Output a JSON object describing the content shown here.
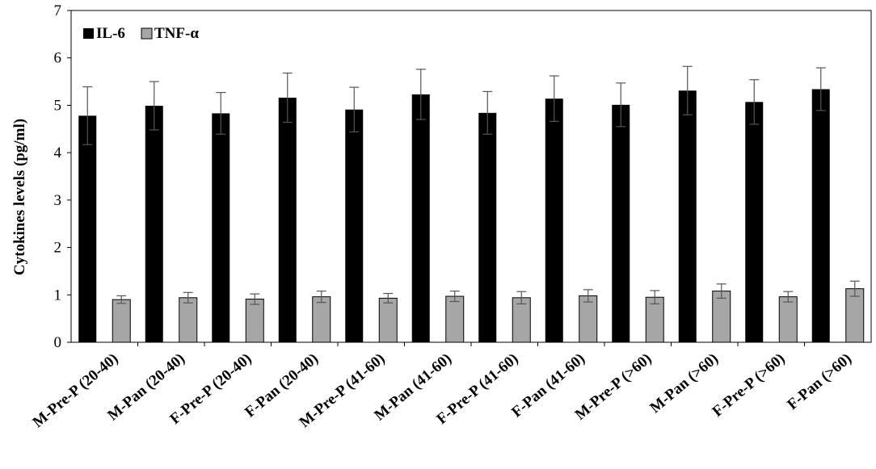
{
  "chart_data": {
    "type": "bar",
    "ylabel": "Cytokines levels (pg/ml)",
    "xlabel": "",
    "title": "",
    "ylim": [
      0,
      7
    ],
    "yticks": [
      0,
      1,
      2,
      3,
      4,
      5,
      6,
      7
    ],
    "legend_position": "top-left",
    "grid": false,
    "categories": [
      "M-Pre-P (20-40)",
      "M-Pan (20-40)",
      "F-Pre-P (20-40)",
      "F-Pan (20-40)",
      "M-Pre-P (41-60)",
      "M-Pan (41-60)",
      "F-Pre-P (41-60)",
      "F-Pan (41-60)",
      "M-Pre-P (>60)",
      "M-Pan (>60)",
      "F-Pre-P (>60)",
      "F-Pan (>60)"
    ],
    "series": [
      {
        "name": "IL-6",
        "color": "#000000",
        "values": [
          4.78,
          4.99,
          4.83,
          5.16,
          4.91,
          5.23,
          4.84,
          5.14,
          5.01,
          5.31,
          5.07,
          5.34
        ],
        "errors": [
          0.61,
          0.51,
          0.44,
          0.52,
          0.47,
          0.53,
          0.45,
          0.48,
          0.46,
          0.51,
          0.47,
          0.45
        ]
      },
      {
        "name": "TNF-α",
        "color": "#a6a6a6",
        "values": [
          0.9,
          0.94,
          0.91,
          0.96,
          0.93,
          0.97,
          0.94,
          0.98,
          0.95,
          1.08,
          0.96,
          1.13
        ],
        "errors": [
          0.08,
          0.11,
          0.11,
          0.12,
          0.1,
          0.11,
          0.13,
          0.13,
          0.14,
          0.15,
          0.11,
          0.16
        ]
      }
    ]
  }
}
